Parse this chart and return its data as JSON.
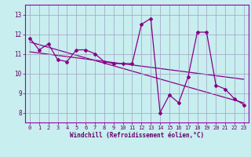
{
  "xlabel": "Windchill (Refroidissement éolien,°C)",
  "background_color": "#c8eef0",
  "grid_color": "#a0a0c0",
  "line_color": "#880088",
  "xlim": [
    -0.5,
    23.5
  ],
  "ylim": [
    7.5,
    13.5
  ],
  "xticks": [
    0,
    1,
    2,
    3,
    4,
    5,
    6,
    7,
    8,
    9,
    10,
    11,
    12,
    13,
    14,
    15,
    16,
    17,
    18,
    19,
    20,
    21,
    22,
    23
  ],
  "yticks": [
    8,
    9,
    10,
    11,
    12,
    13
  ],
  "data_x": [
    0,
    1,
    2,
    3,
    4,
    5,
    6,
    7,
    8,
    9,
    10,
    11,
    12,
    13,
    14,
    15,
    16,
    17,
    18,
    19,
    20,
    21,
    22,
    23
  ],
  "data_y": [
    11.8,
    11.2,
    11.5,
    10.7,
    10.6,
    11.2,
    11.2,
    11.0,
    10.6,
    10.5,
    10.5,
    10.5,
    12.5,
    12.8,
    8.0,
    8.9,
    8.5,
    9.8,
    12.1,
    12.1,
    9.4,
    9.2,
    8.7,
    8.4
  ],
  "trend_start_y": 11.6,
  "trend_end_y": 8.5,
  "trend2_start_y": 11.1,
  "trend2_end_y": 9.7,
  "marker": "D",
  "markersize": 2.0,
  "linewidth": 0.9,
  "tick_fontsize": 5.0,
  "xlabel_fontsize": 5.5,
  "font_color": "#660066",
  "spine_color": "#9900aa"
}
